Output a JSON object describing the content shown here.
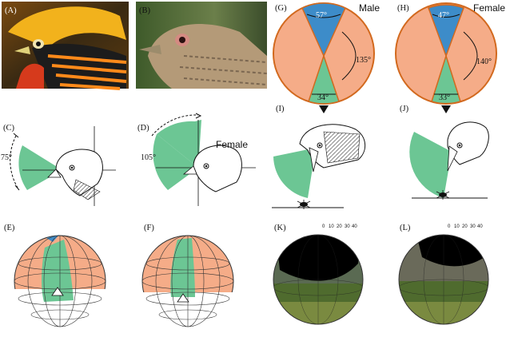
{
  "panels": {
    "A": "(A)",
    "B": "(B)",
    "C": "(C)",
    "D": "(D)",
    "E": "(E)",
    "F": "(F)",
    "G": "(G)",
    "H": "(H)",
    "I": "(I)",
    "J": "(J)",
    "K": "(K)",
    "L": "(L)"
  },
  "sex": {
    "male": "Male",
    "female": "Female",
    "female_d": "Female"
  },
  "male_angles": {
    "binocular": "57°",
    "blind": "135°",
    "bill": "34°"
  },
  "female_angles": {
    "binocular": "47°",
    "blind": "140°",
    "bill": "33°"
  },
  "vertical_angles": {
    "C": "75°",
    "D": "105°"
  },
  "ticks": {
    "zero": "0",
    "ten": "10",
    "twenty": "20",
    "thirty": "30",
    "forty": "40"
  },
  "colors": {
    "binocular": "#6cc694",
    "blind": "#f5ac88",
    "monocular_top": "#3d8cc9",
    "outline": "#d2691e"
  }
}
